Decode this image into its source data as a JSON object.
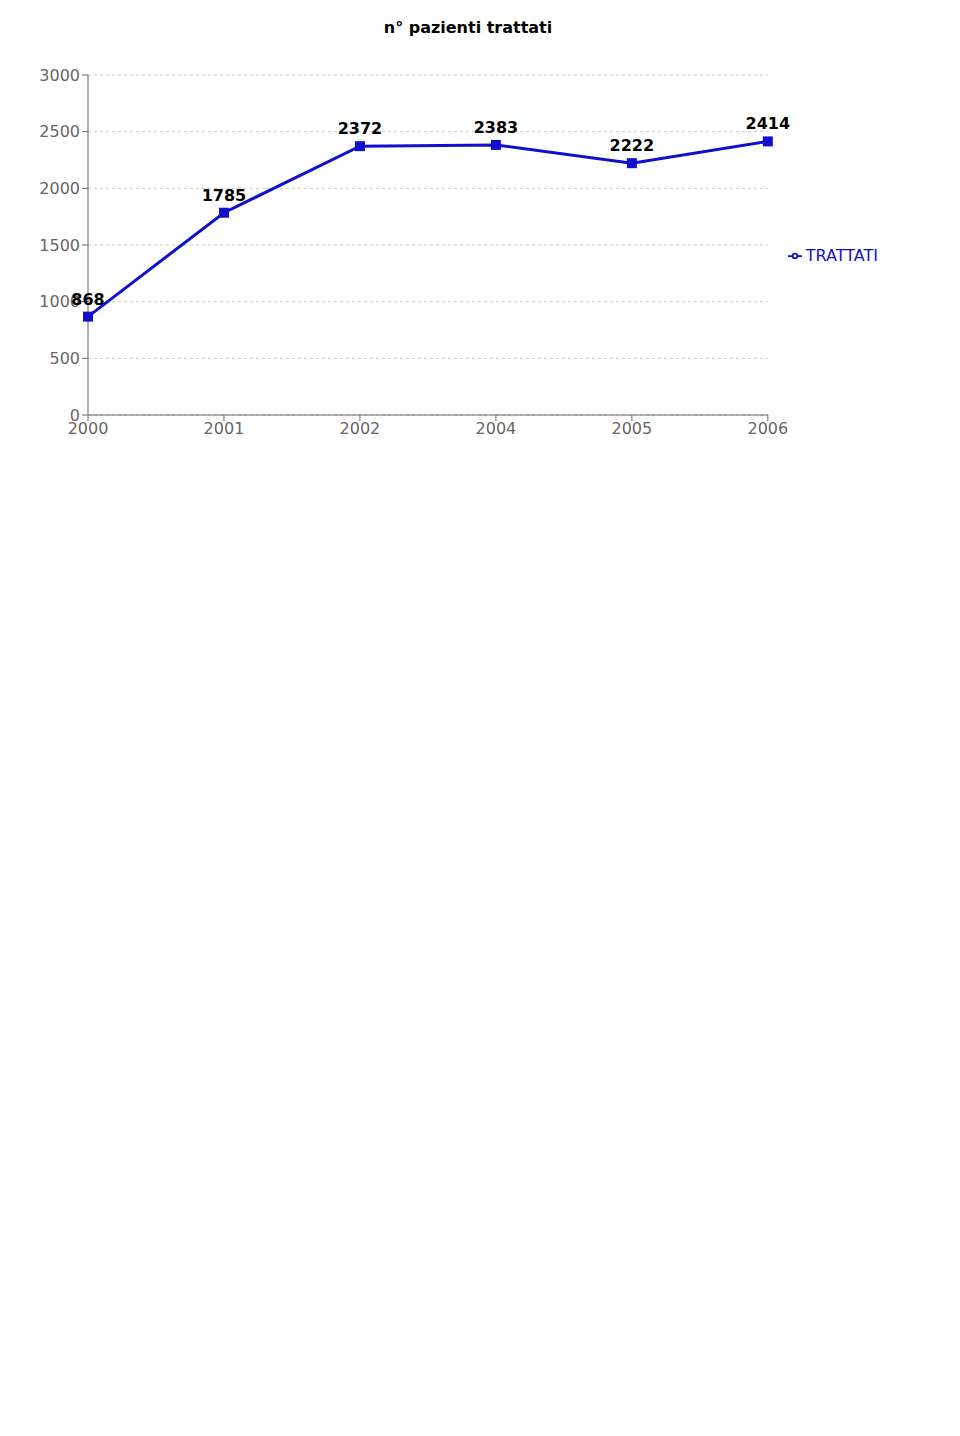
{
  "chart_data": {
    "type": "line",
    "title": "n° pazienti trattati",
    "categories": [
      "2000",
      "2001",
      "2002",
      "2004",
      "2005",
      "2006"
    ],
    "series": [
      {
        "name": "TRATTATI",
        "color": "#1010CC",
        "marker": "square",
        "values": [
          868,
          1785,
          2372,
          2383,
          2222,
          2414
        ]
      }
    ],
    "ylim": [
      0,
      3000
    ],
    "yticks": [
      0,
      500,
      1000,
      1500,
      2000,
      2500,
      3000
    ],
    "grid": true,
    "legend": "right",
    "data_labels": true
  }
}
